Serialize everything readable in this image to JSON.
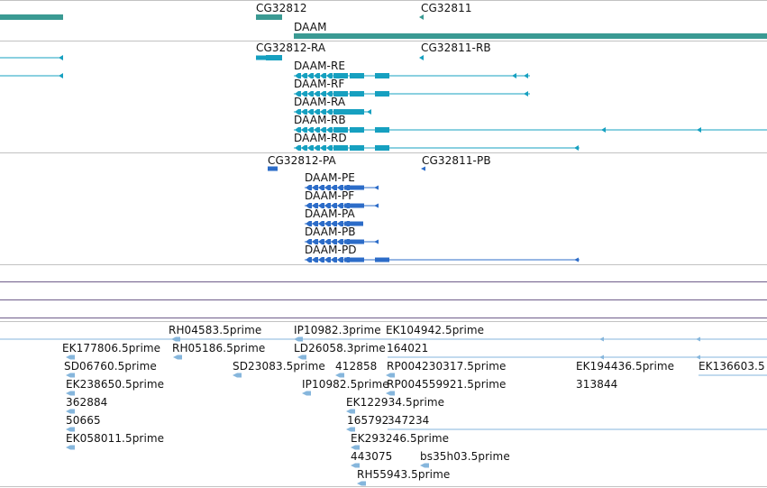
{
  "colors": {
    "gene": "#3a9a93",
    "transcript": "#16a0c0",
    "protein": "#2c6cc8",
    "est": "#86b6dc",
    "divider": "#c2c2c2",
    "divider_alt": "#6f5d8a"
  },
  "genes": {
    "labels": [
      "CG32812",
      "CG32811",
      "DAAM"
    ]
  },
  "transcripts": {
    "labels": [
      "CG32812-RA",
      "CG32811-RB",
      "DAAM-RE",
      "DAAM-RF",
      "DAAM-RA",
      "DAAM-RB",
      "DAAM-RD"
    ]
  },
  "proteins": {
    "labels": [
      "CG32812-PA",
      "CG32811-PB",
      "DAAM-PE",
      "DAAM-PF",
      "DAAM-PA",
      "DAAM-PB",
      "DAAM-PD"
    ]
  },
  "ests": {
    "labels": [
      "RH04583.5prime",
      "IP10982.3prime",
      "EK104942.5prime",
      "EK177806.5prime",
      "RH05186.5prime",
      "LD26058.3prime",
      "164021",
      "SD06760.5prime",
      "SD23083.5prime",
      "412858",
      "RP004230317.5prime",
      "EK194436.5prime",
      "EK136603.5",
      "EK238650.5prime",
      "IP10982.5prime",
      "RP004559921.5prime",
      "313844",
      "362884",
      "EK122934.5prime",
      "50665",
      "165792",
      "347234",
      "EK058011.5prime",
      "EK293246.5prime",
      "443075",
      "bs35h03.5prime",
      "RH55943.5prime"
    ]
  }
}
